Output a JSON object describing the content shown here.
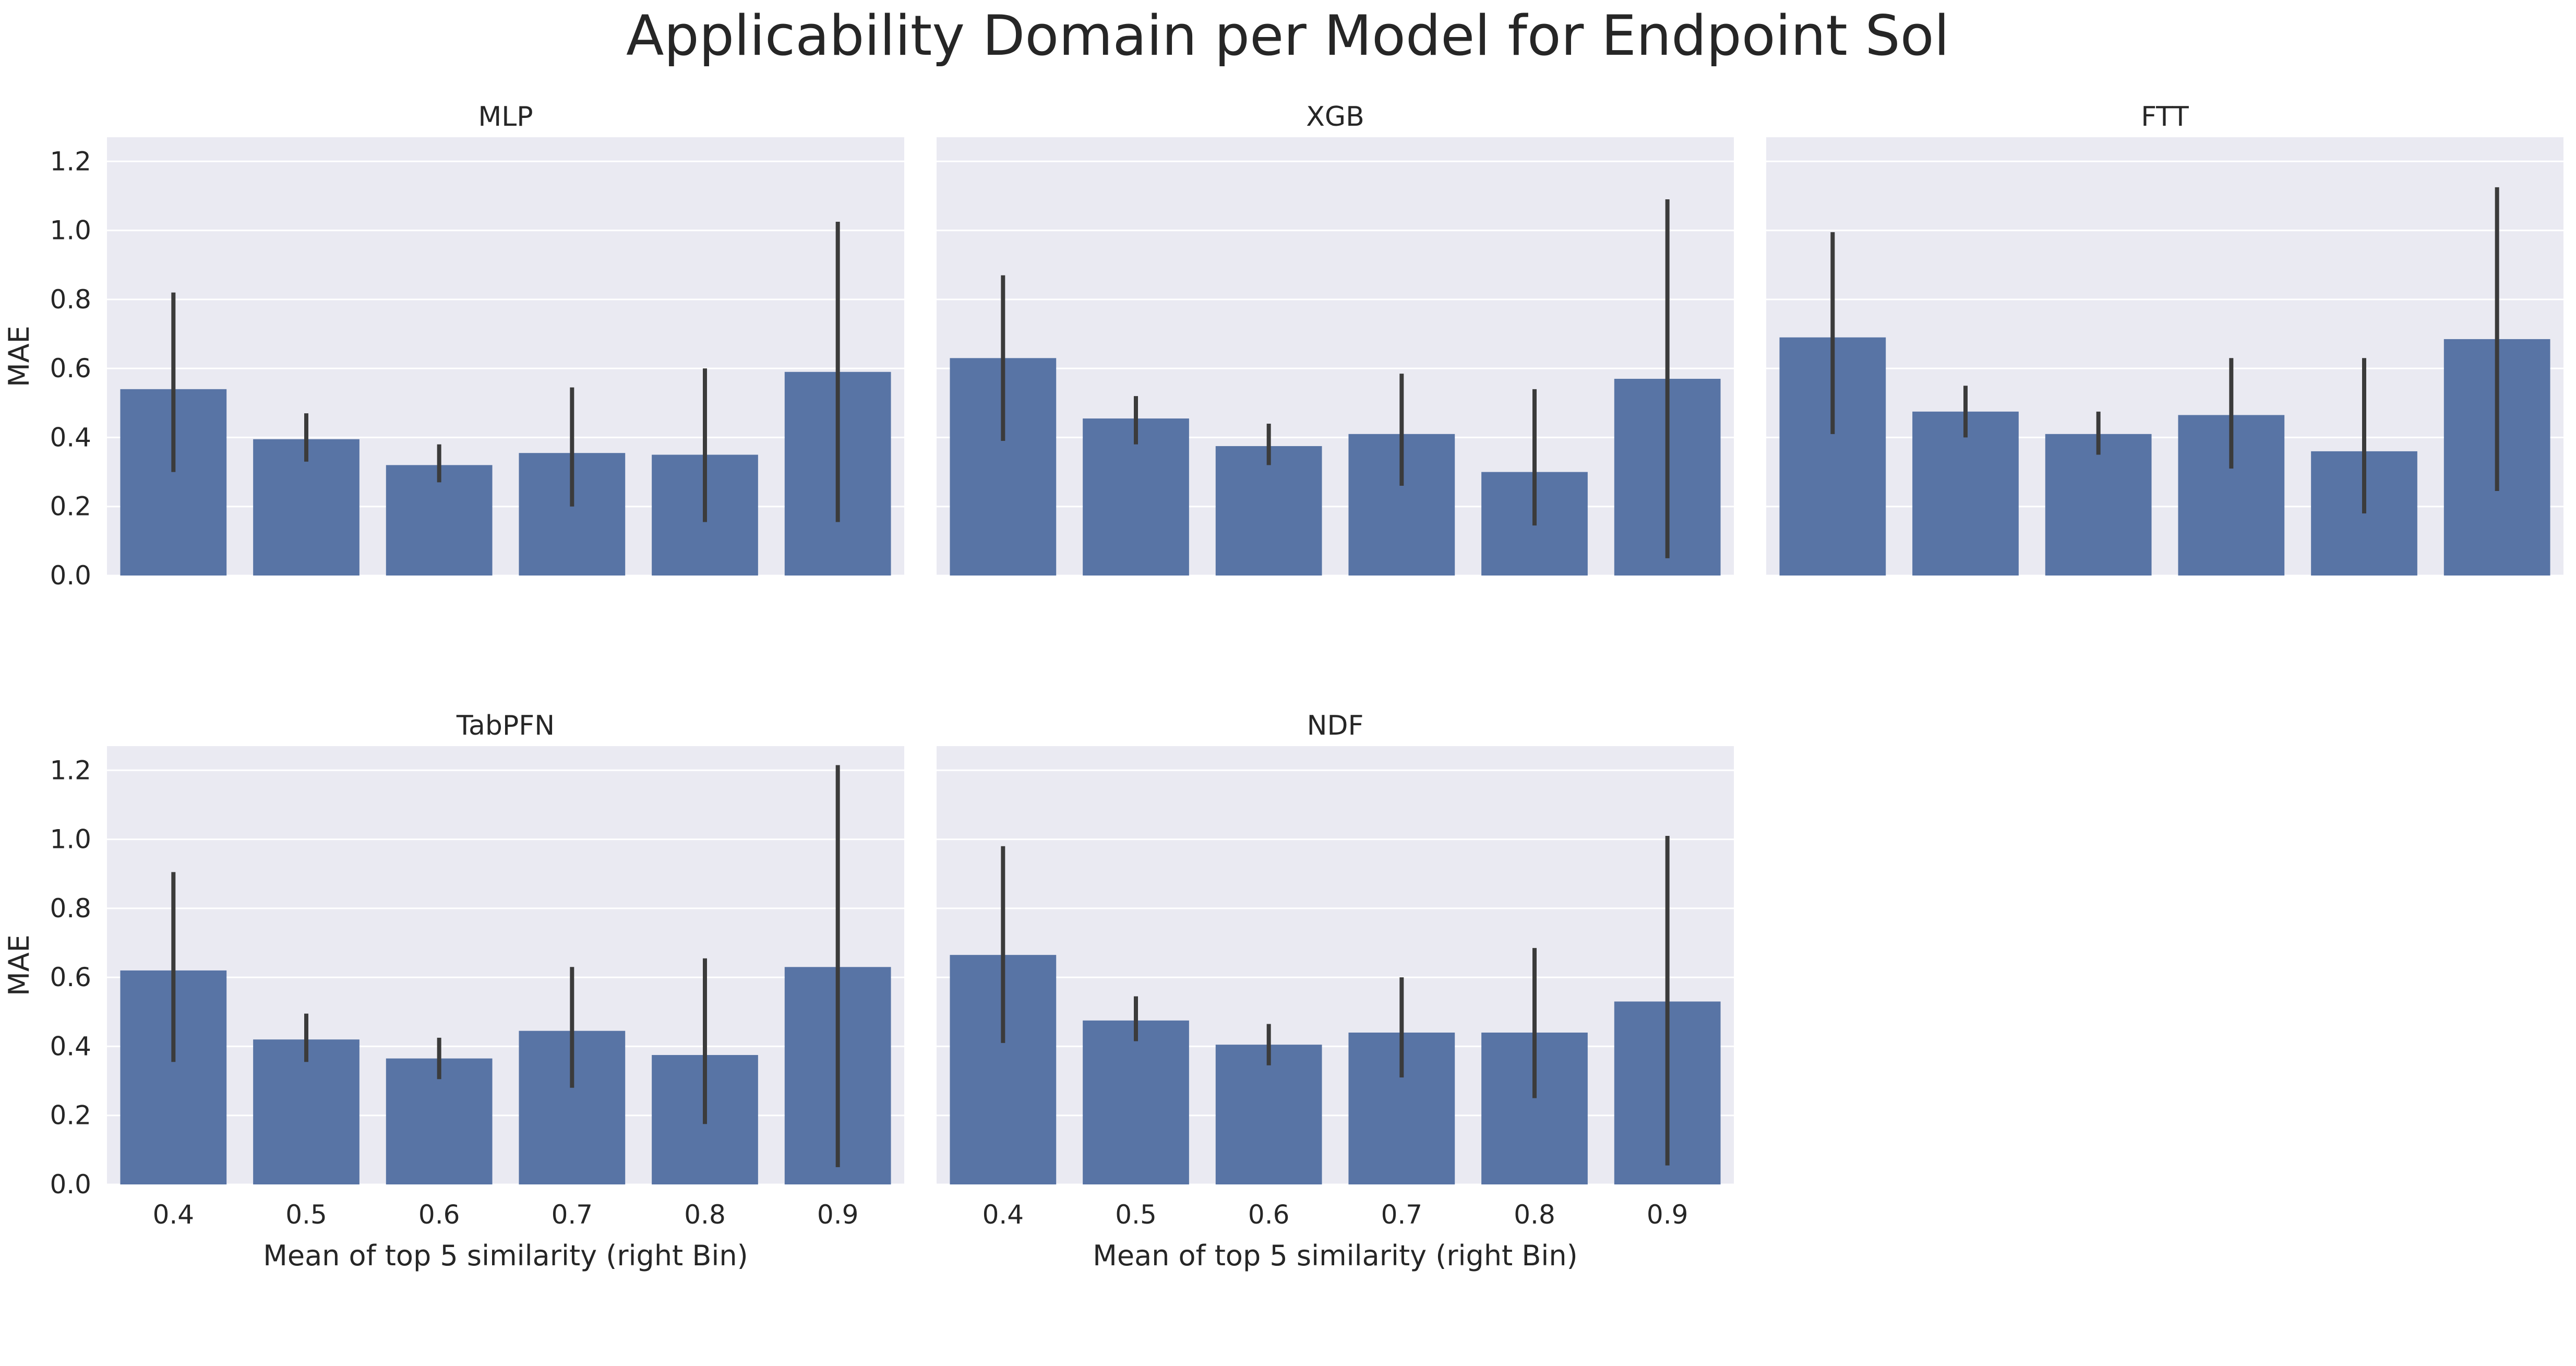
{
  "chart_data": {
    "type": "bar",
    "title": "Applicability Domain per Model for Endpoint Sol",
    "xlabel": "Mean of top 5 similarity (right Bin)",
    "ylabel": "MAE",
    "categories": [
      "0.4",
      "0.5",
      "0.6",
      "0.7",
      "0.8",
      "0.9"
    ],
    "ylim": [
      0,
      1.27
    ],
    "yticks": [
      "0.0",
      "0.2",
      "0.4",
      "0.6",
      "0.8",
      "1.0",
      "1.2"
    ],
    "grid": true,
    "bar_color": "#5874a5",
    "error_bar_color": "#3b3b3b",
    "background_color": "#eaeaf2",
    "panels": [
      {
        "name": "MLP",
        "values": [
          0.54,
          0.395,
          0.32,
          0.355,
          0.35,
          0.59
        ],
        "error_low": [
          0.3,
          0.33,
          0.27,
          0.2,
          0.155,
          0.155
        ],
        "error_high": [
          0.82,
          0.47,
          0.38,
          0.545,
          0.6,
          1.025
        ]
      },
      {
        "name": "XGB",
        "values": [
          0.63,
          0.455,
          0.375,
          0.41,
          0.3,
          0.57
        ],
        "error_low": [
          0.39,
          0.38,
          0.32,
          0.26,
          0.145,
          0.05
        ],
        "error_high": [
          0.87,
          0.52,
          0.44,
          0.585,
          0.54,
          1.09
        ]
      },
      {
        "name": "FTT",
        "values": [
          0.69,
          0.475,
          0.41,
          0.465,
          0.36,
          0.685
        ],
        "error_low": [
          0.41,
          0.4,
          0.35,
          0.31,
          0.18,
          0.245
        ],
        "error_high": [
          0.995,
          0.55,
          0.475,
          0.63,
          0.63,
          1.125
        ]
      },
      {
        "name": "TabPFN",
        "values": [
          0.62,
          0.42,
          0.365,
          0.445,
          0.375,
          0.63
        ],
        "error_low": [
          0.355,
          0.355,
          0.305,
          0.28,
          0.175,
          0.05
        ],
        "error_high": [
          0.905,
          0.495,
          0.425,
          0.63,
          0.655,
          1.215
        ]
      },
      {
        "name": "NDF",
        "values": [
          0.665,
          0.475,
          0.405,
          0.44,
          0.44,
          0.53
        ],
        "error_low": [
          0.41,
          0.415,
          0.345,
          0.31,
          0.25,
          0.055
        ],
        "error_high": [
          0.98,
          0.545,
          0.465,
          0.6,
          0.685,
          1.01
        ]
      }
    ]
  }
}
